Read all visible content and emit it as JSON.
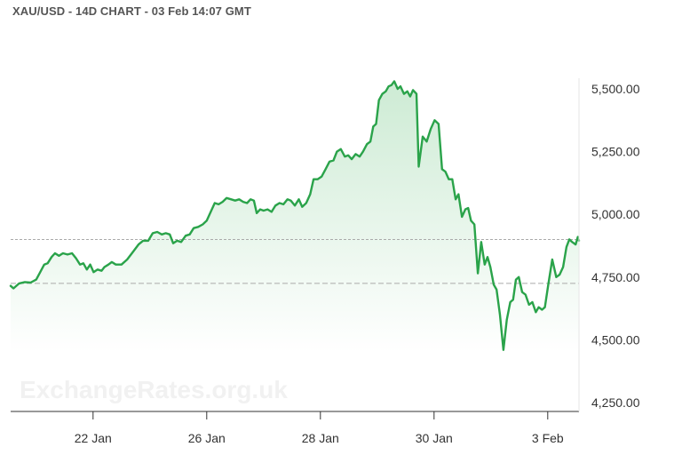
{
  "header": {
    "title": "XAU/USD - 14D CHART - 03 Feb 14:07 GMT"
  },
  "watermark": "ExchangeRates.org.uk",
  "colors": {
    "line": "#2aa34a",
    "fill_top": "#cdebd4",
    "fill_bottom": "#ffffff",
    "reference": "#aaaaaa",
    "axis": "#333333"
  },
  "chart_data": {
    "type": "area",
    "title": "XAU/USD - 14D CHART - 03 Feb 14:07 GMT",
    "xlabel": "",
    "ylabel": "",
    "x_range": [
      0,
      100
    ],
    "ylim": [
      4200,
      5650
    ],
    "y_ticks": [
      {
        "value": 5500,
        "label": "5,500.00"
      },
      {
        "value": 5250,
        "label": "5,250.00"
      },
      {
        "value": 5000,
        "label": "5,000.00"
      },
      {
        "value": 4750,
        "label": "4,750.00"
      },
      {
        "value": 4500,
        "label": "4,500.00"
      },
      {
        "value": 4250,
        "label": "4,250.00"
      }
    ],
    "x_ticks": [
      {
        "x": 14.5,
        "label": "22 Jan"
      },
      {
        "x": 34.5,
        "label": "26 Jan"
      },
      {
        "x": 54.5,
        "label": "28 Jan"
      },
      {
        "x": 74.5,
        "label": "30 Jan"
      },
      {
        "x": 94.5,
        "label": "3 Feb"
      }
    ],
    "reference_lines": [
      4900,
      4725
    ],
    "grid": false,
    "series": [
      {
        "points": [
          [
            0.0,
            4715
          ],
          [
            0.5,
            4705
          ],
          [
            1.5,
            4725
          ],
          [
            2.5,
            4730
          ],
          [
            3.5,
            4728
          ],
          [
            4.5,
            4740
          ],
          [
            5.2,
            4770
          ],
          [
            5.9,
            4800
          ],
          [
            6.5,
            4805
          ],
          [
            7.2,
            4830
          ],
          [
            7.8,
            4845
          ],
          [
            8.5,
            4835
          ],
          [
            9.2,
            4845
          ],
          [
            10.0,
            4840
          ],
          [
            10.8,
            4845
          ],
          [
            11.5,
            4825
          ],
          [
            12.2,
            4800
          ],
          [
            12.8,
            4805
          ],
          [
            13.4,
            4780
          ],
          [
            14.0,
            4800
          ],
          [
            14.6,
            4770
          ],
          [
            15.3,
            4780
          ],
          [
            16.0,
            4775
          ],
          [
            16.5,
            4790
          ],
          [
            17.2,
            4800
          ],
          [
            17.8,
            4810
          ],
          [
            18.5,
            4800
          ],
          [
            19.5,
            4800
          ],
          [
            20.5,
            4820
          ],
          [
            21.5,
            4850
          ],
          [
            22.5,
            4880
          ],
          [
            23.3,
            4895
          ],
          [
            24.2,
            4895
          ],
          [
            25.0,
            4925
          ],
          [
            25.8,
            4930
          ],
          [
            26.6,
            4920
          ],
          [
            27.3,
            4925
          ],
          [
            28.0,
            4920
          ],
          [
            28.6,
            4885
          ],
          [
            29.3,
            4895
          ],
          [
            30.0,
            4890
          ],
          [
            30.8,
            4915
          ],
          [
            31.5,
            4920
          ],
          [
            32.2,
            4945
          ],
          [
            33.0,
            4950
          ],
          [
            33.8,
            4960
          ],
          [
            34.5,
            4975
          ],
          [
            35.2,
            5010
          ],
          [
            35.9,
            5045
          ],
          [
            36.6,
            5040
          ],
          [
            37.3,
            5050
          ],
          [
            38.0,
            5065
          ],
          [
            38.8,
            5060
          ],
          [
            39.5,
            5055
          ],
          [
            40.2,
            5060
          ],
          [
            40.9,
            5050
          ],
          [
            41.6,
            5045
          ],
          [
            42.2,
            5060
          ],
          [
            42.8,
            5055
          ],
          [
            43.3,
            5005
          ],
          [
            43.9,
            5020
          ],
          [
            44.5,
            5015
          ],
          [
            45.2,
            5020
          ],
          [
            45.9,
            5010
          ],
          [
            46.6,
            5035
          ],
          [
            47.3,
            5045
          ],
          [
            48.0,
            5040
          ],
          [
            48.7,
            5060
          ],
          [
            49.3,
            5055
          ],
          [
            50.0,
            5035
          ],
          [
            50.7,
            5060
          ],
          [
            51.3,
            5030
          ],
          [
            52.0,
            5045
          ],
          [
            52.7,
            5080
          ],
          [
            53.3,
            5140
          ],
          [
            54.0,
            5140
          ],
          [
            54.7,
            5150
          ],
          [
            55.4,
            5180
          ],
          [
            56.1,
            5210
          ],
          [
            56.8,
            5215
          ],
          [
            57.4,
            5250
          ],
          [
            58.1,
            5260
          ],
          [
            58.8,
            5230
          ],
          [
            59.4,
            5235
          ],
          [
            60.0,
            5220
          ],
          [
            60.7,
            5240
          ],
          [
            61.4,
            5230
          ],
          [
            62.0,
            5250
          ],
          [
            62.7,
            5280
          ],
          [
            63.3,
            5290
          ],
          [
            63.8,
            5350
          ],
          [
            64.3,
            5360
          ],
          [
            64.8,
            5455
          ],
          [
            65.4,
            5480
          ],
          [
            66.0,
            5490
          ],
          [
            66.5,
            5510
          ],
          [
            67.0,
            5515
          ],
          [
            67.5,
            5530
          ],
          [
            68.1,
            5500
          ],
          [
            68.6,
            5510
          ],
          [
            69.2,
            5480
          ],
          [
            69.8,
            5490
          ],
          [
            70.3,
            5470
          ],
          [
            70.8,
            5495
          ],
          [
            71.4,
            5480
          ],
          [
            71.8,
            5190
          ],
          [
            72.5,
            5310
          ],
          [
            73.2,
            5290
          ],
          [
            73.9,
            5340
          ],
          [
            74.6,
            5375
          ],
          [
            75.3,
            5360
          ],
          [
            75.9,
            5180
          ],
          [
            76.5,
            5170
          ],
          [
            77.1,
            5140
          ],
          [
            77.7,
            5140
          ],
          [
            78.3,
            5060
          ],
          [
            78.8,
            5080
          ],
          [
            79.4,
            4990
          ],
          [
            80.0,
            5020
          ],
          [
            80.5,
            5025
          ],
          [
            81.0,
            4975
          ],
          [
            81.6,
            4960
          ],
          [
            82.2,
            4765
          ],
          [
            82.8,
            4890
          ],
          [
            83.4,
            4800
          ],
          [
            83.9,
            4830
          ],
          [
            84.4,
            4790
          ],
          [
            85.0,
            4720
          ],
          [
            85.5,
            4700
          ],
          [
            86.1,
            4600
          ],
          [
            86.7,
            4460
          ],
          [
            87.3,
            4580
          ],
          [
            87.9,
            4650
          ],
          [
            88.4,
            4660
          ],
          [
            88.9,
            4740
          ],
          [
            89.4,
            4750
          ],
          [
            90.0,
            4690
          ],
          [
            90.6,
            4680
          ],
          [
            91.2,
            4640
          ],
          [
            91.8,
            4650
          ],
          [
            92.4,
            4610
          ],
          [
            92.9,
            4630
          ],
          [
            93.5,
            4620
          ],
          [
            94.0,
            4630
          ],
          [
            94.6,
            4720
          ],
          [
            95.3,
            4820
          ],
          [
            96.0,
            4750
          ],
          [
            96.6,
            4760
          ],
          [
            97.2,
            4790
          ],
          [
            97.8,
            4870
          ],
          [
            98.3,
            4900
          ],
          [
            98.8,
            4890
          ],
          [
            99.4,
            4880
          ],
          [
            99.8,
            4910
          ],
          [
            100.0,
            4895
          ]
        ]
      }
    ]
  }
}
